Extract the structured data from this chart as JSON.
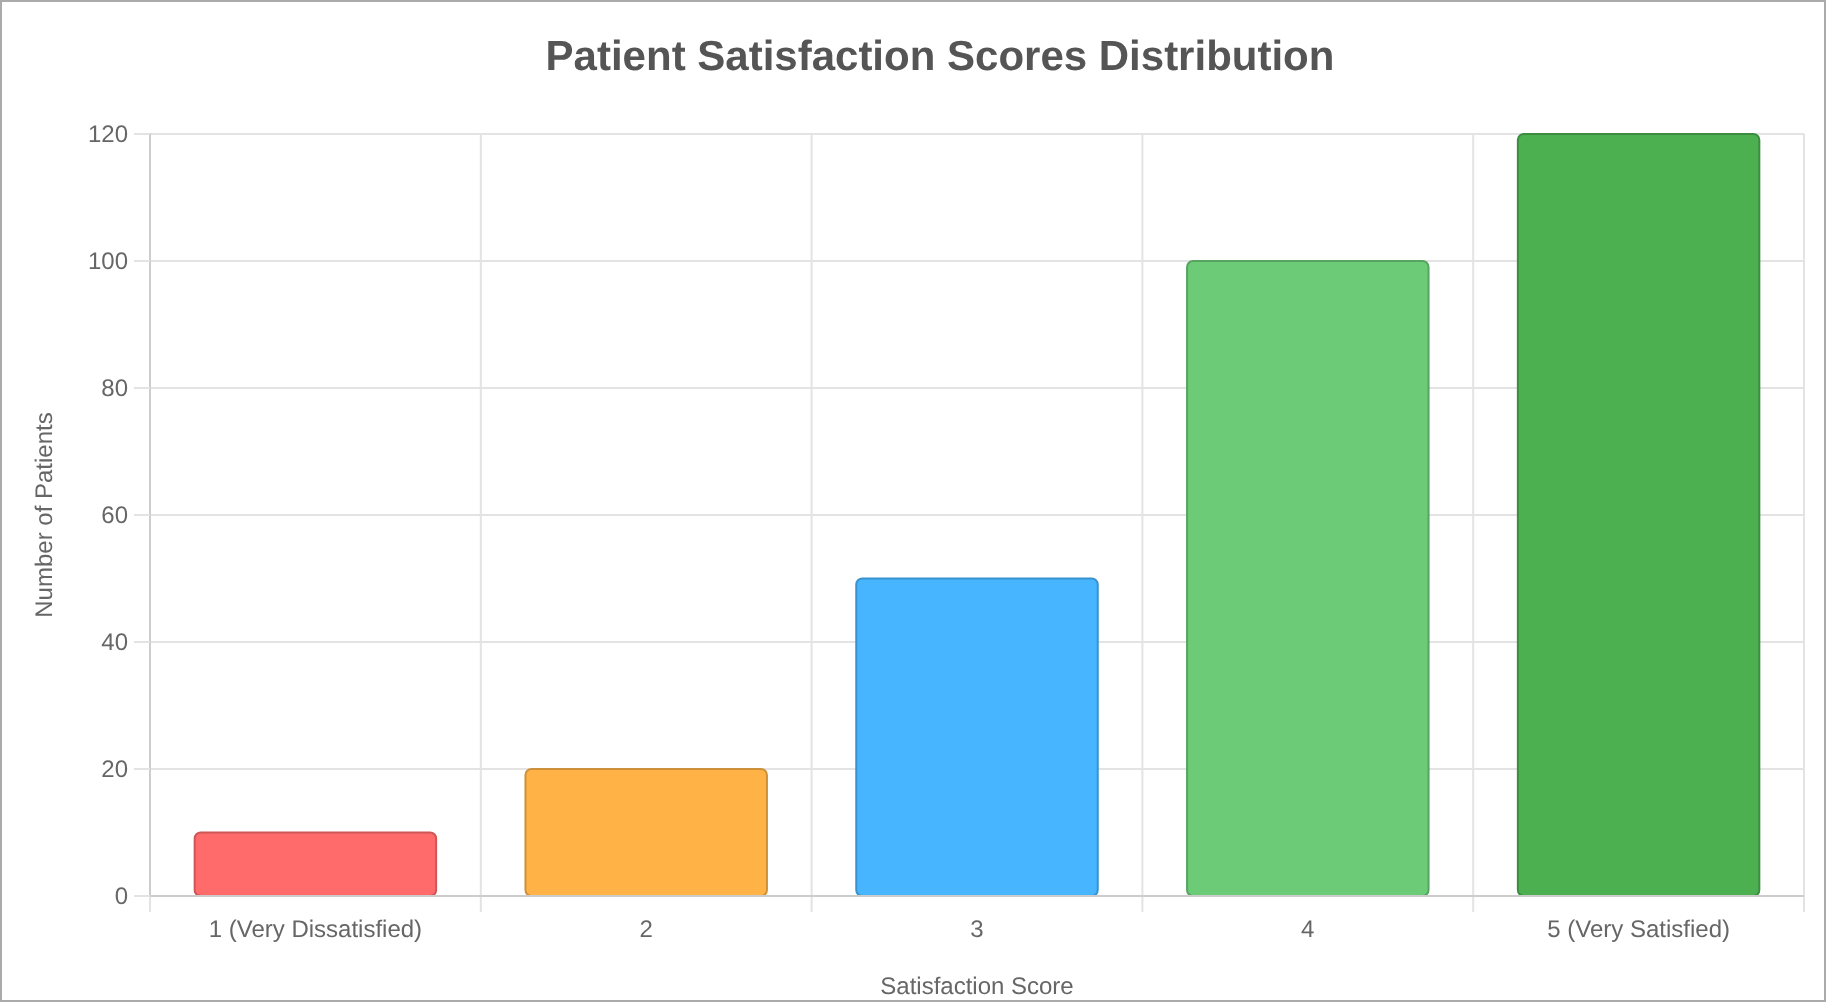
{
  "chart_data": {
    "type": "bar",
    "title": "Patient Satisfaction Scores Distribution",
    "xlabel": "Satisfaction Score",
    "ylabel": "Number of Patients",
    "categories": [
      "1 (Very Dissatisfied)",
      "2",
      "3",
      "4",
      "5 (Very Satisfied)"
    ],
    "values": [
      10,
      20,
      50,
      100,
      120
    ],
    "colors": [
      "#ff6b6b",
      "#ffb347",
      "#47b5ff",
      "#6bcb77",
      "#4caf50"
    ],
    "ylim": [
      0,
      120
    ],
    "yticks": [
      0,
      20,
      40,
      60,
      80,
      100,
      120
    ],
    "grid": true
  }
}
